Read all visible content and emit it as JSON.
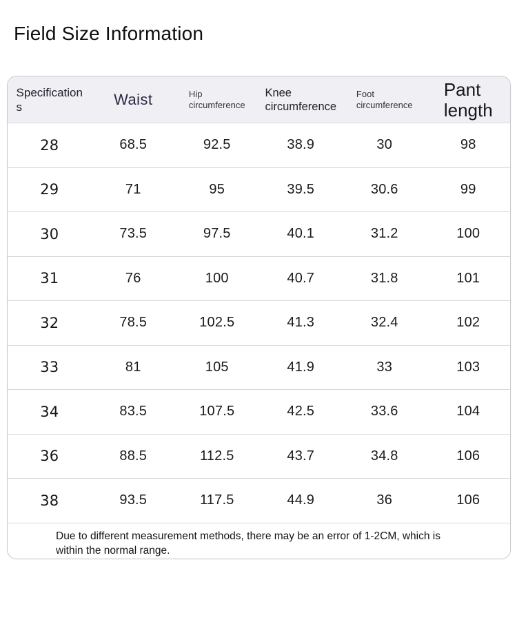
{
  "page": {
    "title": "Field Size Information"
  },
  "theme": {
    "page_bg": "#ffffff",
    "title_text": "#0e0e10",
    "header_bg": "#f0eff3",
    "header_text": "#232130",
    "header_waist": "#2e2945",
    "body_text": "#1b1b1d",
    "note_text": "#141414",
    "border": "#c8c8cd",
    "divider": "#d9d9dd"
  },
  "size_table": {
    "headers": [
      {
        "id": "specifications",
        "label": "Specification\ns"
      },
      {
        "id": "waist",
        "label": "Waist"
      },
      {
        "id": "hip_circumference",
        "label": "Hip\ncircumference"
      },
      {
        "id": "knee_circumference",
        "label": "Knee\ncircumference"
      },
      {
        "id": "foot_circumference",
        "label": "Foot\ncircumference"
      },
      {
        "id": "pant_length",
        "label": "Pant\nlength"
      }
    ],
    "rows": [
      [
        "28",
        "68.5",
        "92.5",
        "38.9",
        "30",
        "98"
      ],
      [
        "29",
        "71",
        "95",
        "39.5",
        "30.6",
        "99"
      ],
      [
        "30",
        "73.5",
        "97.5",
        "40.1",
        "31.2",
        "100"
      ],
      [
        "31",
        "76",
        "100",
        "40.7",
        "31.8",
        "101"
      ],
      [
        "32",
        "78.5",
        "102.5",
        "41.3",
        "32.4",
        "102"
      ],
      [
        "33",
        "81",
        "105",
        "41.9",
        "33",
        "103"
      ],
      [
        "34",
        "83.5",
        "107.5",
        "42.5",
        "33.6",
        "104"
      ],
      [
        "36",
        "88.5",
        "112.5",
        "43.7",
        "34.8",
        "106"
      ],
      [
        "38",
        "93.5",
        "117.5",
        "44.9",
        "36",
        "106"
      ]
    ],
    "note": "Due to different measurement methods, there may be an error of 1-2CM, which is within the normal range."
  }
}
